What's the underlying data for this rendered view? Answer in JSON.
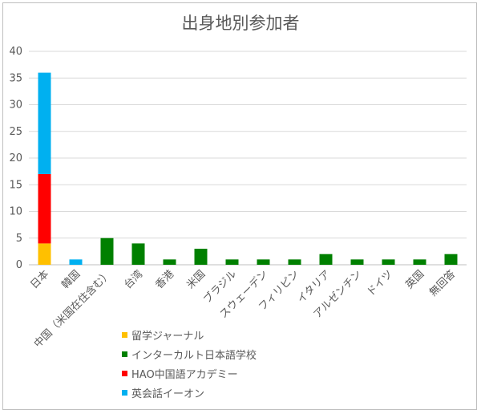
{
  "chart_data": {
    "type": "bar",
    "stacked": true,
    "title": "出身地別参加者",
    "xlabel": "",
    "ylabel": "",
    "ylim": [
      0,
      40
    ],
    "yticks": [
      0,
      5,
      10,
      15,
      20,
      25,
      30,
      35,
      40
    ],
    "grid": true,
    "legend_position": "bottom-left",
    "categories": [
      "日本",
      "韓国",
      "中国（米国在住含む）",
      "台湾",
      "香港",
      "米国",
      "ブラジル",
      "スウェーデン",
      "フィリピン",
      "イタリア",
      "アルゼンチン",
      "ドイツ",
      "英国",
      "無回答"
    ],
    "series": [
      {
        "name": "留学ジャーナル",
        "color": "#ffc000",
        "values": [
          4,
          0,
          0,
          0,
          0,
          0,
          0,
          0,
          0,
          0,
          0,
          0,
          0,
          0
        ]
      },
      {
        "name": "インターカルト日本語学校",
        "color": "#008000",
        "values": [
          0,
          0,
          5,
          4,
          1,
          3,
          1,
          1,
          1,
          2,
          1,
          1,
          1,
          2
        ]
      },
      {
        "name": "HAO中国語アカデミー",
        "color": "#ff0000",
        "values": [
          13,
          0,
          0,
          0,
          0,
          0,
          0,
          0,
          0,
          0,
          0,
          0,
          0,
          0
        ]
      },
      {
        "name": "英会話イーオン",
        "color": "#00b0f0",
        "values": [
          19,
          1,
          0,
          0,
          0,
          0,
          0,
          0,
          0,
          0,
          0,
          0,
          0,
          0
        ]
      }
    ]
  }
}
